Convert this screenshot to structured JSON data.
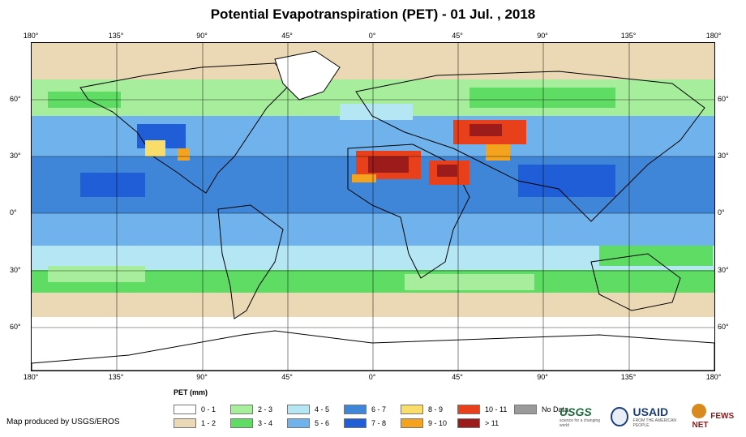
{
  "title": "Potential Evapotranspiration (PET) - 01 Jul. , 2018",
  "longitude_labels": [
    "180°",
    "135°",
    "90°",
    "45°",
    "0°",
    "45°",
    "90°",
    "135°",
    "180°"
  ],
  "latitude_labels": [
    "60°",
    "30°",
    "0°",
    "30°",
    "60°"
  ],
  "legend": {
    "title": "PET (mm)",
    "items": [
      {
        "label": "0 - 1",
        "color": "#ffffff"
      },
      {
        "label": "1 - 2",
        "color": "#ebd8b4"
      },
      {
        "label": "2 - 3",
        "color": "#a7ee9c"
      },
      {
        "label": "3 - 4",
        "color": "#5fdc64"
      },
      {
        "label": "4 - 5",
        "color": "#b4e6f4"
      },
      {
        "label": "5 - 6",
        "color": "#6fb2ec"
      },
      {
        "label": "6 - 7",
        "color": "#3f86d9"
      },
      {
        "label": "7 - 8",
        "color": "#1f5ed6"
      },
      {
        "label": "8 - 9",
        "color": "#f9dd6a"
      },
      {
        "label": "9 - 10",
        "color": "#f4a31e"
      },
      {
        "label": "10 - 11",
        "color": "#e8401a"
      },
      {
        "label": "> 11",
        "color": "#9c1c1c"
      },
      {
        "label": "No Data",
        "color": "#9a9a9a"
      }
    ]
  },
  "credit": "Map produced by USGS/EROS",
  "logos": {
    "usgs": "USGS",
    "usgs_tagline": "science for a changing world",
    "usaid": "USAID",
    "usaid_tagline": "FROM THE AMERICAN PEOPLE",
    "fews": "FEWS NET"
  }
}
